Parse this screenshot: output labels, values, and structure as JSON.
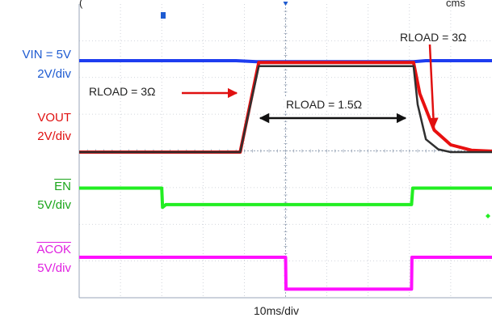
{
  "chart_data": {
    "type": "line",
    "header": "(",
    "header_right": "cms",
    "xlabel": "10ms/div",
    "grid": true,
    "time_per_div_ms": 10,
    "x_range_ms": [
      0,
      100
    ],
    "channels": [
      {
        "name_line1": "VIN = 5V",
        "name_line2": "2V/div",
        "color": "#1e3df0",
        "points_ms_v": [
          [
            0,
            5.0
          ],
          [
            38,
            5.0
          ],
          [
            43,
            4.8
          ],
          [
            81,
            4.8
          ],
          [
            84,
            5.0
          ],
          [
            100,
            5.0
          ]
        ]
      },
      {
        "name_line1": "VOUT",
        "name_line2": "2V/div",
        "color": "#e81010",
        "points_ms_v": [
          [
            0,
            0
          ],
          [
            39,
            0
          ],
          [
            43.5,
            4.9
          ],
          [
            81,
            4.9
          ],
          [
            82.5,
            3.2
          ],
          [
            86,
            1.2
          ],
          [
            90,
            0.4
          ],
          [
            95,
            0.1
          ],
          [
            100,
            0.05
          ]
        ]
      },
      {
        "name_line1": "",
        "name_line2": "",
        "color": "#303030",
        "points_ms_v": [
          [
            0,
            0
          ],
          [
            39,
            0
          ],
          [
            43.5,
            4.7
          ],
          [
            81,
            4.7
          ],
          [
            82,
            2.6
          ],
          [
            84,
            0.7
          ],
          [
            87,
            0.15
          ],
          [
            90,
            0
          ],
          [
            100,
            0
          ]
        ]
      },
      {
        "name_line1": "EN",
        "name_line2": "5V/div",
        "color": "#22ee22",
        "points_ms_v": [
          [
            0,
            5
          ],
          [
            20,
            5
          ],
          [
            20.2,
            2.2
          ],
          [
            21,
            2.6
          ],
          [
            80.5,
            2.6
          ],
          [
            80.8,
            5
          ],
          [
            100,
            5
          ]
        ]
      },
      {
        "name_line1": "ACOK",
        "name_line2": "5V/div",
        "color": "#ff10ff",
        "points_ms_v": [
          [
            0,
            5
          ],
          [
            50,
            5
          ],
          [
            50.1,
            0.2
          ],
          [
            80.5,
            0.2
          ],
          [
            80.6,
            5
          ],
          [
            100,
            5
          ]
        ]
      }
    ],
    "annotations": [
      {
        "text": "RLOAD = 3Ω"
      },
      {
        "text": "RLOAD = 3Ω"
      },
      {
        "text": "RLOAD = 1.5Ω"
      }
    ]
  }
}
